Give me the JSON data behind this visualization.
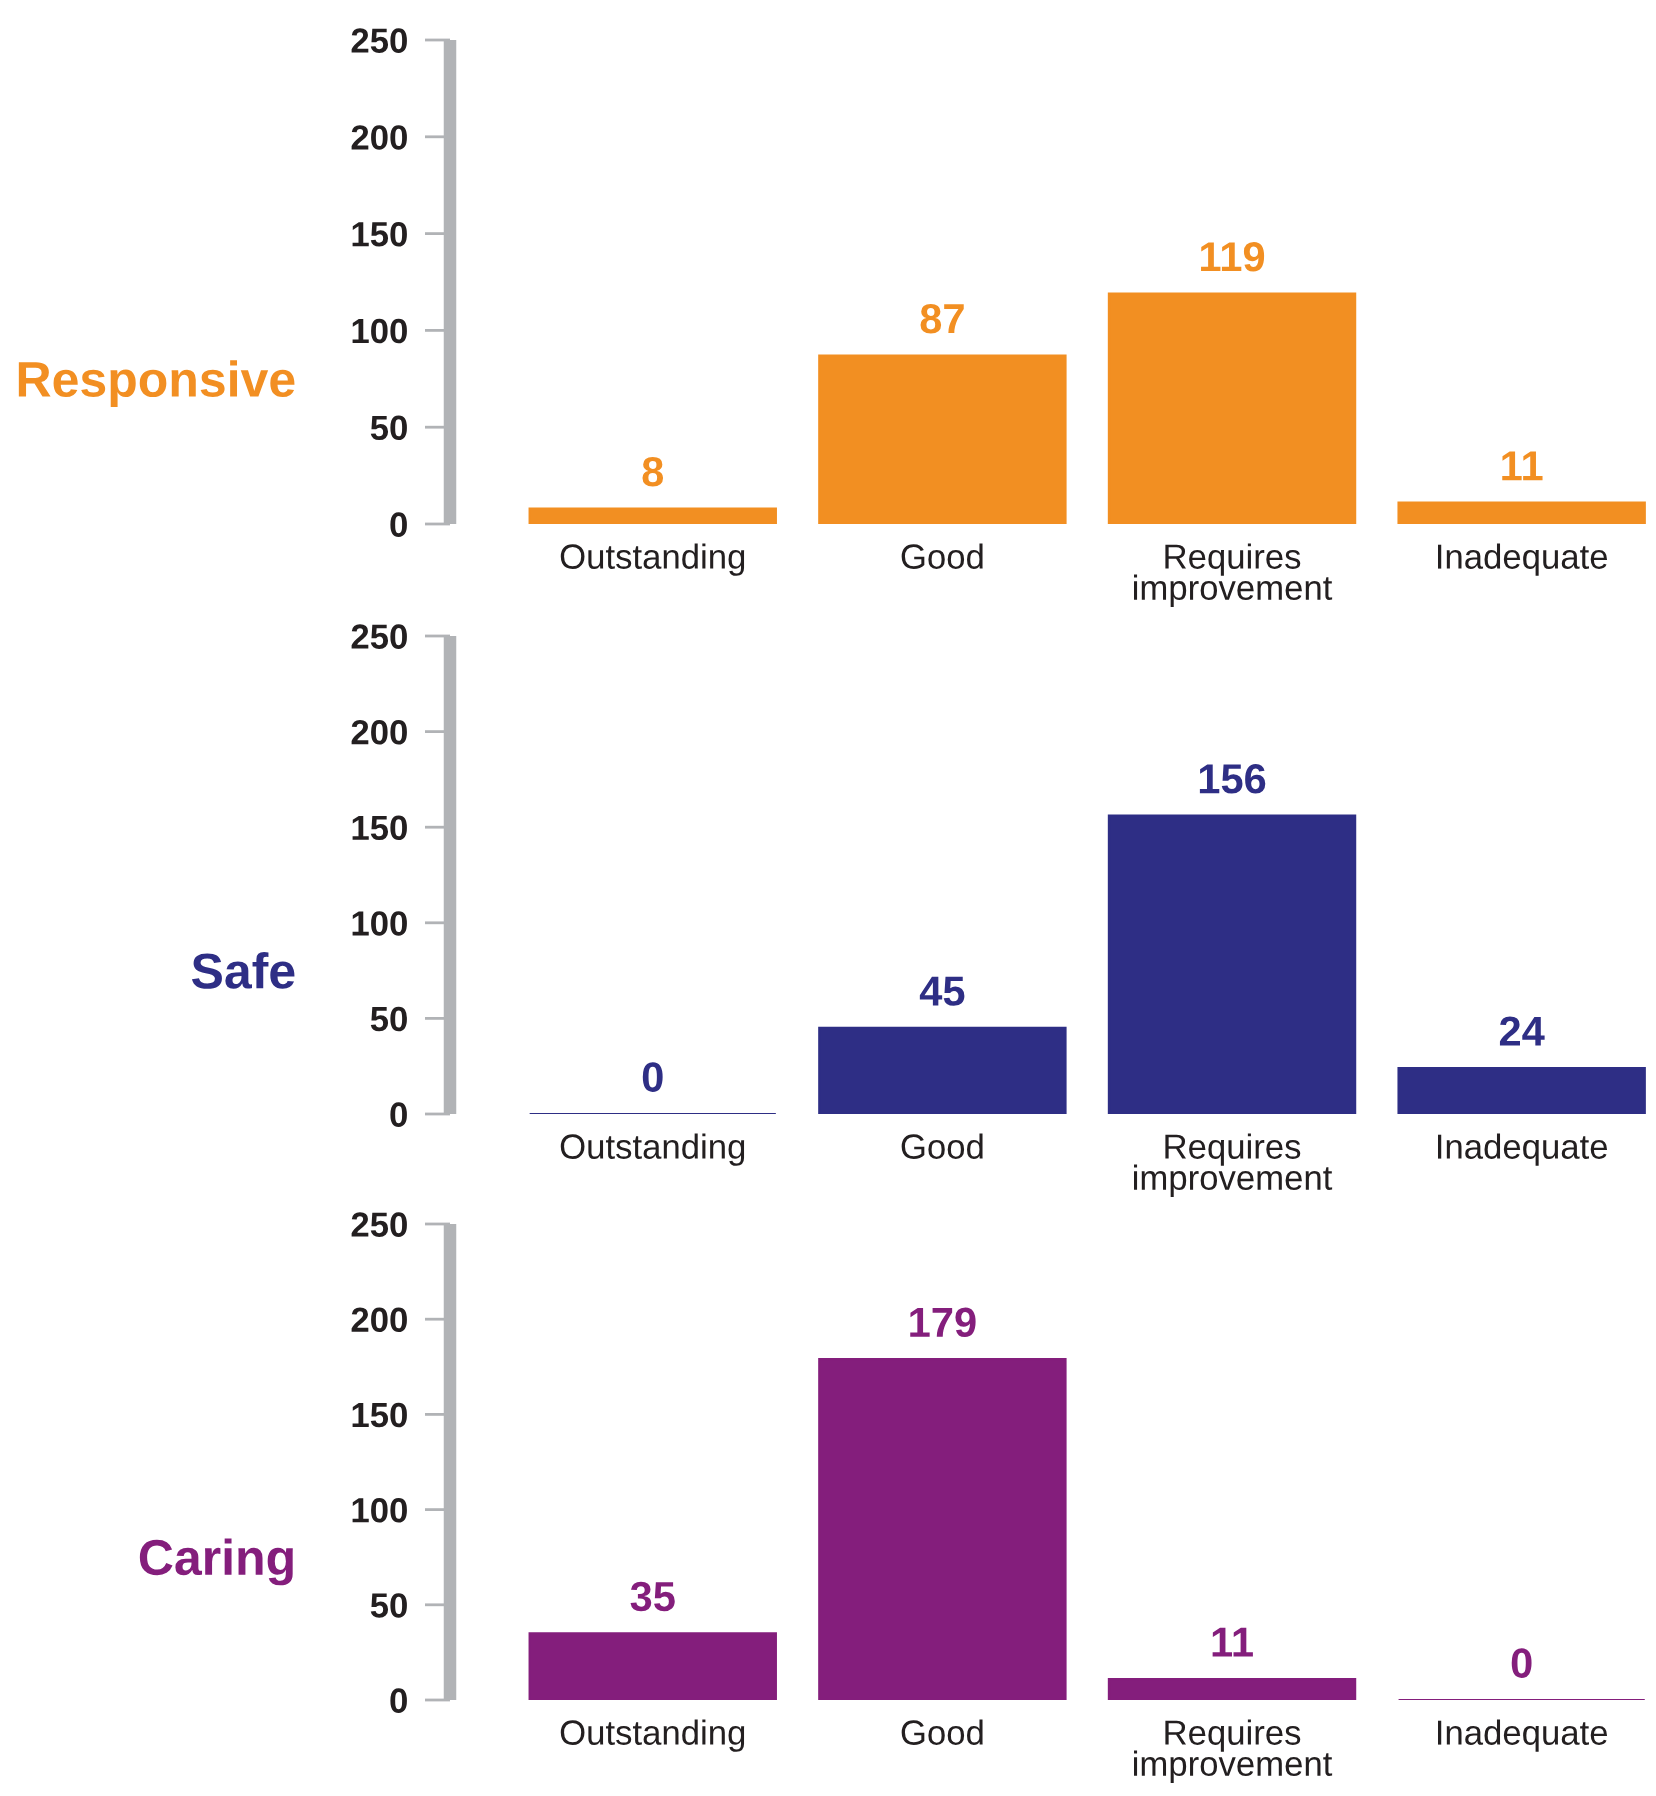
{
  "chart_data": [
    {
      "type": "bar",
      "title": "Responsive",
      "categories": [
        "Outstanding",
        "Good",
        "Requires\nimprovement",
        "Inadequate"
      ],
      "values": [
        8,
        87,
        119,
        11
      ],
      "color": "#f28f22",
      "ylim": [
        0,
        250
      ],
      "yticks": [
        0,
        50,
        100,
        150,
        200,
        250
      ],
      "data_labels": true
    },
    {
      "type": "bar",
      "title": "Safe",
      "categories": [
        "Outstanding",
        "Good",
        "Requires\nimprovement",
        "Inadequate"
      ],
      "values": [
        0,
        45,
        156,
        24
      ],
      "color": "#2e2e85",
      "ylim": [
        0,
        250
      ],
      "yticks": [
        0,
        50,
        100,
        150,
        200,
        250
      ],
      "data_labels": true
    },
    {
      "type": "bar",
      "title": "Caring",
      "categories": [
        "Outstanding",
        "Good",
        "Requires\nimprovement",
        "Inadequate"
      ],
      "values": [
        35,
        179,
        11,
        0
      ],
      "color": "#841e7c",
      "ylim": [
        0,
        250
      ],
      "yticks": [
        0,
        50,
        100,
        150,
        200,
        250
      ],
      "data_labels": true
    }
  ]
}
